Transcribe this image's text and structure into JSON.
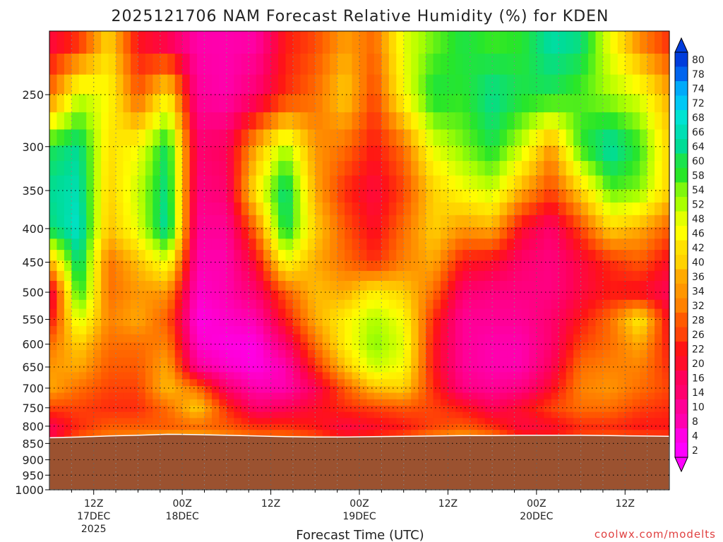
{
  "chart_data": {
    "type": "heatmap",
    "title": "2025121706 NAM Forecast Relative Humidity (%) for KDEN",
    "xlabel": "Forecast Time (UTC)",
    "ylabel": "",
    "credit": "coolwx.com/modelts",
    "y_scale": "log-pressure",
    "ylim": [
      1000,
      200
    ],
    "y_ticks": [
      250,
      300,
      350,
      400,
      450,
      500,
      550,
      600,
      650,
      700,
      750,
      800,
      850,
      900,
      950,
      1000
    ],
    "x_ticks": [
      {
        "hour": 6,
        "lines": [
          "12Z",
          "17DEC",
          "2025"
        ]
      },
      {
        "hour": 18,
        "lines": [
          "00Z",
          "18DEC"
        ]
      },
      {
        "hour": 30,
        "lines": [
          "12Z"
        ]
      },
      {
        "hour": 42,
        "lines": [
          "00Z",
          "19DEC"
        ]
      },
      {
        "hour": 54,
        "lines": [
          "12Z"
        ]
      },
      {
        "hour": 66,
        "lines": [
          "00Z",
          "20DEC"
        ]
      },
      {
        "hour": 78,
        "lines": [
          "12Z"
        ]
      }
    ],
    "xlim": [
      0,
      84
    ],
    "grid": true,
    "surface_pressure": [
      833,
      831,
      828,
      826,
      823,
      824,
      826,
      828,
      830,
      831,
      831,
      830,
      829,
      828,
      827,
      827,
      826,
      826,
      826,
      827,
      828,
      829
    ],
    "surface_color": "#9b5230",
    "colorbar": {
      "position": "right",
      "ticks": [
        80,
        78,
        74,
        72,
        68,
        66,
        64,
        60,
        58,
        54,
        52,
        48,
        46,
        42,
        40,
        36,
        34,
        32,
        28,
        26,
        22,
        20,
        16,
        14,
        10,
        8,
        4,
        2
      ]
    },
    "grid_pressure": [
      200,
      250,
      300,
      350,
      400,
      450,
      500,
      550,
      600,
      650,
      700,
      750,
      800,
      850
    ],
    "grid_hours": [
      0,
      4,
      8,
      12,
      16,
      20,
      24,
      28,
      32,
      36,
      40,
      44,
      48,
      52,
      56,
      60,
      64,
      68,
      72,
      76,
      80,
      84
    ],
    "rh": [
      [
        16,
        20,
        40,
        20,
        12,
        8,
        8,
        8,
        22,
        26,
        34,
        30,
        48,
        54,
        60,
        56,
        58,
        66,
        64,
        46,
        30,
        22
      ],
      [
        30,
        50,
        46,
        28,
        44,
        10,
        8,
        14,
        24,
        30,
        40,
        26,
        46,
        60,
        58,
        64,
        60,
        60,
        56,
        52,
        48,
        36
      ],
      [
        60,
        64,
        42,
        46,
        62,
        14,
        16,
        36,
        52,
        34,
        30,
        22,
        30,
        48,
        54,
        60,
        50,
        34,
        58,
        66,
        58,
        40
      ],
      [
        64,
        66,
        40,
        50,
        64,
        12,
        14,
        44,
        64,
        36,
        24,
        18,
        26,
        40,
        46,
        50,
        36,
        26,
        40,
        56,
        54,
        40
      ],
      [
        62,
        68,
        38,
        48,
        66,
        10,
        10,
        30,
        62,
        40,
        28,
        20,
        30,
        40,
        34,
        36,
        20,
        14,
        26,
        40,
        36,
        28
      ],
      [
        36,
        64,
        30,
        38,
        48,
        8,
        8,
        20,
        46,
        36,
        30,
        24,
        32,
        36,
        22,
        20,
        14,
        12,
        18,
        24,
        28,
        20
      ],
      [
        14,
        60,
        30,
        34,
        34,
        6,
        8,
        14,
        28,
        38,
        36,
        44,
        40,
        30,
        14,
        12,
        12,
        12,
        18,
        22,
        20,
        16
      ],
      [
        20,
        50,
        32,
        36,
        28,
        4,
        6,
        8,
        22,
        36,
        44,
        52,
        46,
        24,
        10,
        10,
        10,
        14,
        22,
        30,
        44,
        20
      ],
      [
        30,
        40,
        30,
        30,
        32,
        6,
        4,
        4,
        14,
        30,
        44,
        54,
        48,
        22,
        10,
        8,
        8,
        14,
        26,
        30,
        36,
        22
      ],
      [
        34,
        36,
        28,
        28,
        36,
        10,
        6,
        4,
        8,
        24,
        38,
        50,
        46,
        22,
        10,
        8,
        8,
        16,
        30,
        32,
        32,
        24
      ],
      [
        36,
        30,
        26,
        26,
        38,
        30,
        14,
        8,
        8,
        16,
        28,
        38,
        40,
        24,
        12,
        10,
        12,
        20,
        32,
        34,
        30,
        26
      ],
      [
        26,
        26,
        24,
        24,
        30,
        40,
        24,
        14,
        16,
        20,
        24,
        26,
        28,
        26,
        22,
        16,
        20,
        26,
        30,
        30,
        26,
        24
      ],
      [
        16,
        24,
        28,
        28,
        28,
        30,
        28,
        24,
        24,
        22,
        18,
        20,
        22,
        26,
        28,
        24,
        18,
        20,
        24,
        24,
        22,
        22
      ],
      [
        18,
        30,
        34,
        36,
        40,
        40,
        36,
        34,
        34,
        30,
        24,
        26,
        30,
        36,
        40,
        36,
        26,
        24,
        28,
        30,
        30,
        28
      ]
    ]
  }
}
